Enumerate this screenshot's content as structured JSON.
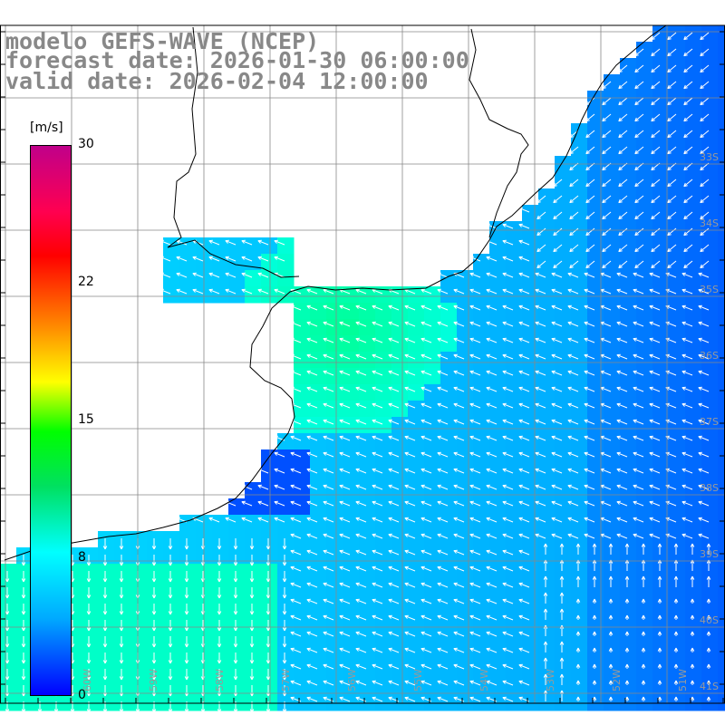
{
  "header": {
    "line1": "modelo GEFS-WAVE (NCEP)",
    "line2": "forecast date: 2026-01-30 06:00:00",
    "line3": "valid date: 2026-02-04 12:00:00"
  },
  "colorbar": {
    "unit": "[m/s]",
    "ticks": [
      "30",
      "22",
      "15",
      "8",
      "0"
    ],
    "min": 0,
    "max": 30
  },
  "lat_labels": [
    "33S",
    "34S",
    "35S",
    "36S",
    "37S",
    "38S",
    "39S",
    "40S",
    "41S"
  ],
  "lon_labels": [
    "60W",
    "59W",
    "58W",
    "57W",
    "56W",
    "55W",
    "54W",
    "53W",
    "52W",
    "51W"
  ],
  "colors": {
    "land": "#ffffff",
    "grid": "#888888",
    "coast": "#000000",
    "arrows": "#ffffff",
    "title": "#888888"
  }
}
